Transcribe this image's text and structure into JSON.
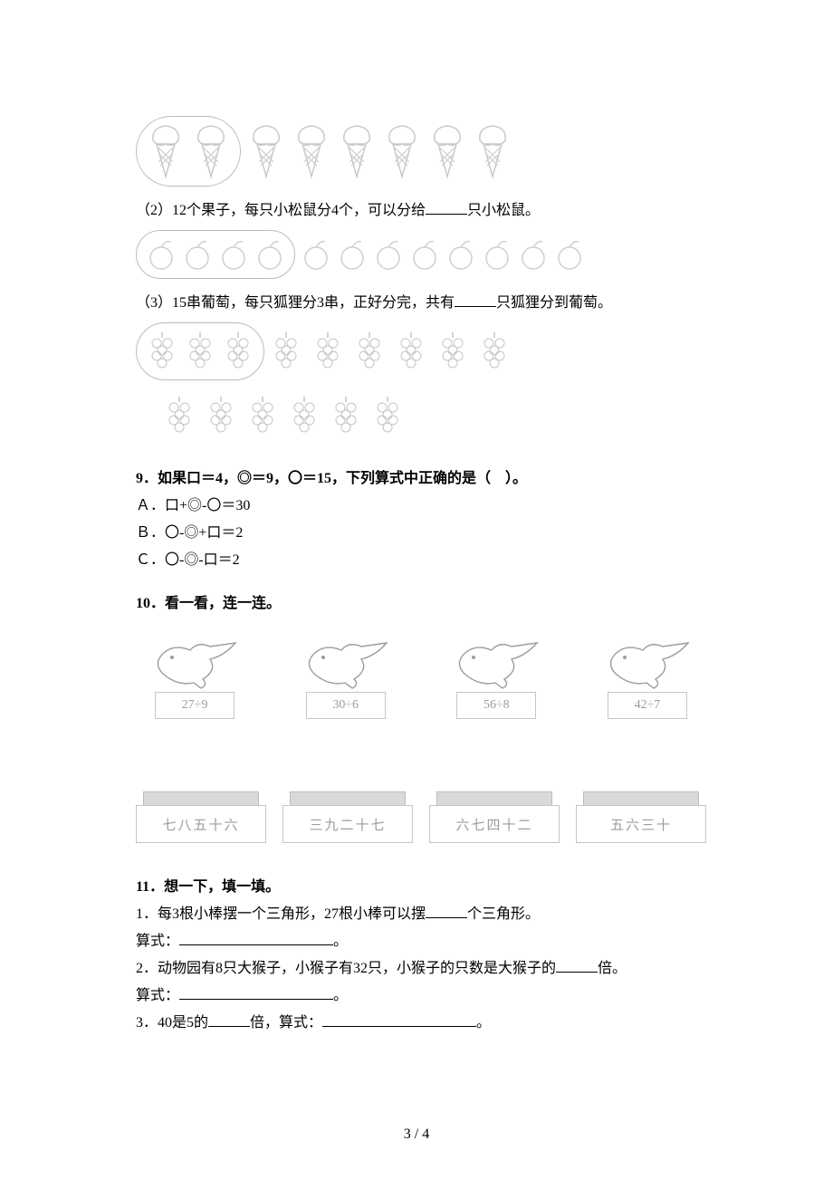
{
  "colors": {
    "page_bg": "#ffffff",
    "text": "#000000",
    "outline": "#bcbcbc",
    "faded": "#9c9c9c",
    "card_border": "#c6c6c6",
    "box_top_fill": "#d9d9d9",
    "box_top_border": "#bdbdbd"
  },
  "typography": {
    "family": "SimSun",
    "base_size_pt": 12,
    "line_height": 1.6
  },
  "q8": {
    "item1": {
      "icon": "ice-cream-cone",
      "grouped_count": 2,
      "loose_count": 6,
      "total_count": 8,
      "icon_color": "#c9c9c9"
    },
    "item2": {
      "pre": "（2）12个果子，每只小松鼠分4个，可以分给",
      "post": "只小松鼠。",
      "icon": "fruit-ring",
      "grouped_count": 4,
      "loose_count": 8,
      "total_count": 12,
      "icon_color": "#cfcfcf"
    },
    "item3": {
      "pre": "（3）15串葡萄，每只狐狸分3串，正好分完，共有",
      "post": "只狐狸分到葡萄。",
      "icon": "grapes",
      "row1_grouped": 3,
      "row1_loose": 6,
      "row2_loose": 6,
      "total_count": 15,
      "icon_color": "#c5c5c5"
    }
  },
  "q9": {
    "num": "9．",
    "stem": "如果口＝4，◎＝9，〇＝15，下列算式中正确的是（　）。",
    "A": "Ａ．口+◎-〇＝30",
    "B": "Ｂ．〇-◎+口＝2",
    "C": "Ｃ．〇-◎-口＝2"
  },
  "q10": {
    "num": "10．",
    "title": "看一看，连一连。",
    "birds": [
      {
        "expr": "27÷9"
      },
      {
        "expr": "30÷6"
      },
      {
        "expr": "56÷8"
      },
      {
        "expr": "42÷7"
      }
    ],
    "boxes": [
      {
        "label": "七八五十六"
      },
      {
        "label": "三九二十七"
      },
      {
        "label": "六七四十二"
      },
      {
        "label": "五六三十"
      }
    ]
  },
  "q11": {
    "num": "11．",
    "title": "想一下，填一填。",
    "p1_pre": "1．每3根小棒摆一个三角形，27根小棒可以摆",
    "p1_post": "个三角形。",
    "formula_label": "算式：",
    "period": "。",
    "p2_pre": "2．动物园有8只大猴子，小猴子有32只，小猴子的只数是大猴子的",
    "p2_post": "倍。",
    "p3_a": "3．40是5的",
    "p3_b": "倍，算式："
  },
  "footer": "3 / 4"
}
